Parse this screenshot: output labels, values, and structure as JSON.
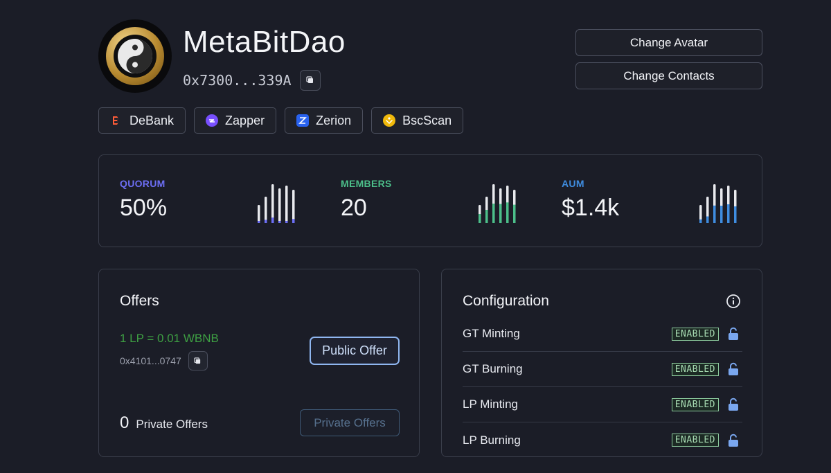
{
  "header": {
    "dao_name": "MetaBitDao",
    "address": "0x7300...339A",
    "change_avatar_label": "Change Avatar",
    "change_contacts_label": "Change Contacts"
  },
  "external_links": [
    {
      "label": "DeBank",
      "icon": "debank-icon",
      "color": "#fe5c38"
    },
    {
      "label": "Zapper",
      "icon": "zapper-icon",
      "color": "#784ffe"
    },
    {
      "label": "Zerion",
      "icon": "zerion-icon",
      "color": "#2962ef"
    },
    {
      "label": "BscScan",
      "icon": "bscscan-icon",
      "color": "#f0b90b"
    }
  ],
  "stats": [
    {
      "label": "QUORUM",
      "value": "50%",
      "color": "#6d6ff5",
      "fill_levels": [
        0.1,
        0.12,
        0.14,
        0.06,
        0.05,
        0.12
      ]
    },
    {
      "label": "MEMBERS",
      "value": "20",
      "color": "#4cbf8a",
      "fill_levels": [
        0.5,
        0.5,
        0.5,
        0.55,
        0.55,
        0.55
      ]
    },
    {
      "label": "AUM",
      "value": "$1.4k",
      "color": "#3f8de0",
      "fill_levels": [
        0.2,
        0.25,
        0.45,
        0.5,
        0.5,
        0.5
      ]
    }
  ],
  "offers": {
    "title": "Offers",
    "rate": "1 LP = 0.01 WBNB",
    "token_address": "0x4101...0747",
    "public_offer_label": "Public Offer",
    "private_count": "0",
    "private_label": "Private Offers",
    "private_offers_button_label": "Private Offers"
  },
  "configuration": {
    "title": "Configuration",
    "items": [
      {
        "label": "GT Minting",
        "status": "ENABLED"
      },
      {
        "label": "GT Burning",
        "status": "ENABLED"
      },
      {
        "label": "LP Minting",
        "status": "ENABLED"
      },
      {
        "label": "LP Burning",
        "status": "ENABLED"
      }
    ]
  }
}
